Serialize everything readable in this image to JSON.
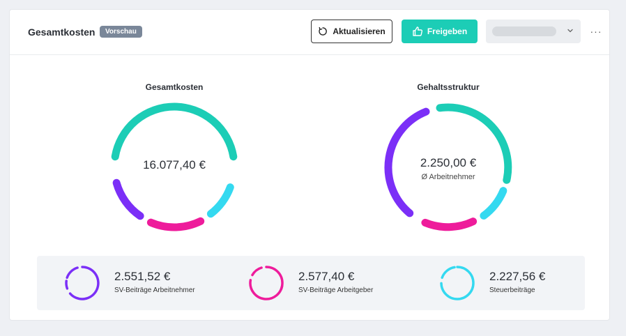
{
  "header": {
    "title": "Gesamtkosten",
    "badge": "Vorschau",
    "refresh_label": "Aktualisieren",
    "share_label": "Freigeben",
    "more_label": "···"
  },
  "charts": {
    "total": {
      "title": "Gesamtkosten",
      "value": "16.077,40 €"
    },
    "salary": {
      "title": "Gehaltsstruktur",
      "value": "2.250,00 €",
      "sub": "Ø Arbeitnehmer"
    }
  },
  "summary": [
    {
      "value": "2.551,52 €",
      "label": "SV-Beiträge Arbeitnehmer",
      "color": "#7b2ff7"
    },
    {
      "value": "2.577,40 €",
      "label": "SV-Beiträge Arbeitgeber",
      "color": "#ee1c9b"
    },
    {
      "value": "2.227,56 €",
      "label": "Steuerbeiträge",
      "color": "#34d9f0"
    }
  ],
  "colors": {
    "teal": "#1ccdb6",
    "purple": "#7b2ff7",
    "magenta": "#ee1c9b",
    "cyan": "#34d9f0"
  }
}
